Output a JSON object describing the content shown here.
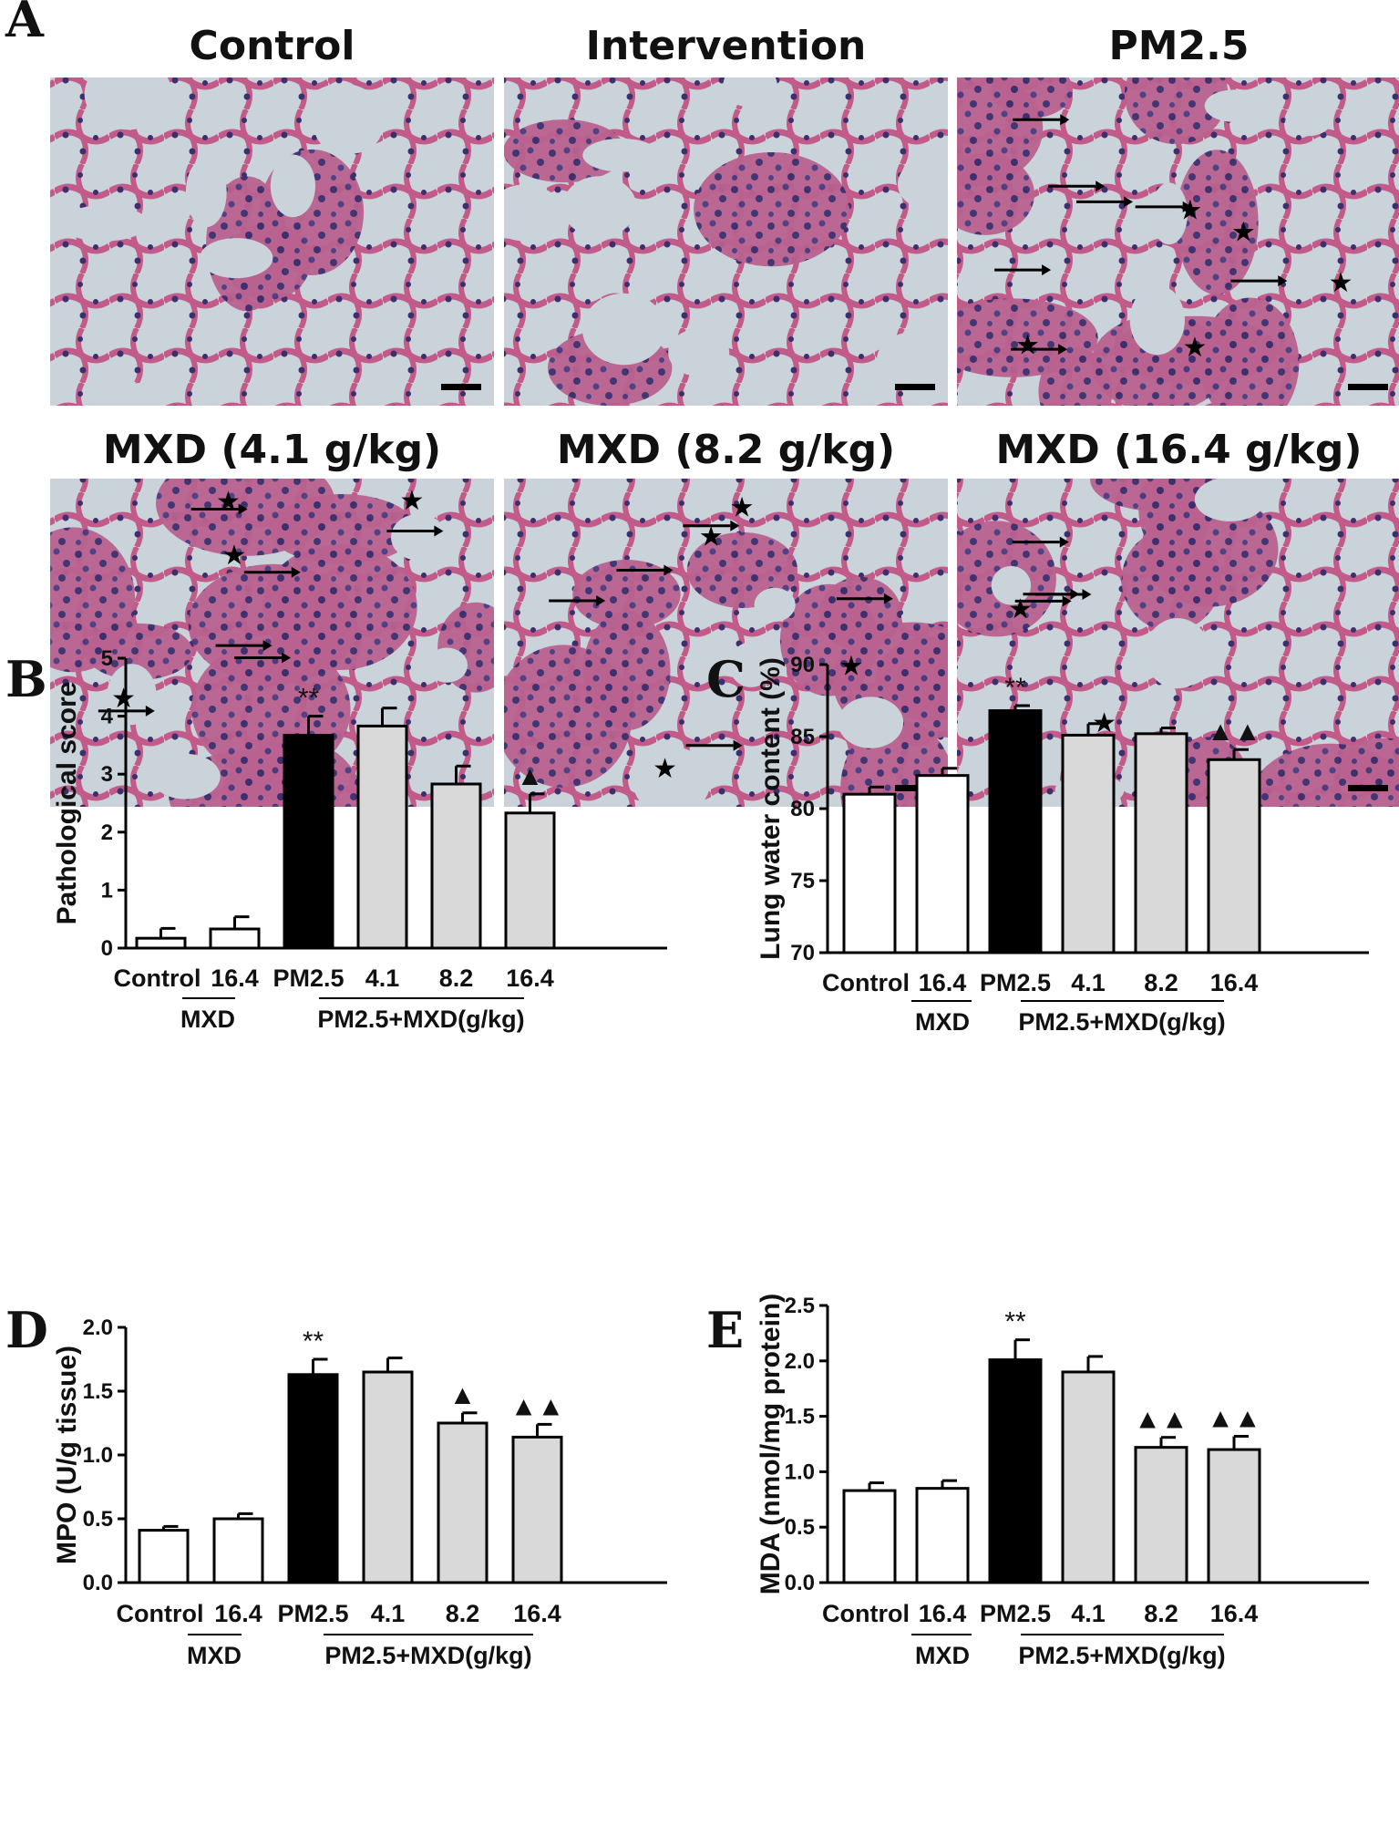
{
  "panels": {
    "a_label": "A",
    "images": [
      {
        "title": "Control",
        "arrows": 0,
        "stars": 0,
        "density": 0.2
      },
      {
        "title": "Intervention",
        "arrows": 0,
        "stars": 0,
        "density": 0.18
      },
      {
        "title": "PM2.5",
        "arrows": 7,
        "stars": 5,
        "density": 0.62
      },
      {
        "title": "MXD (4.1 g/kg)",
        "arrows": 6,
        "stars": 4,
        "density": 0.6
      },
      {
        "title": "MXD (8.2 g/kg)",
        "arrows": 5,
        "stars": 4,
        "density": 0.56
      },
      {
        "title": "MXD (16.4 g/kg)",
        "arrows": 4,
        "stars": 2,
        "density": 0.48
      }
    ]
  },
  "colors": {
    "tissue_bg": "#c9d3d9",
    "tissue_pink": "#c25a8a",
    "tissue_nuclei": "#3b2f6e",
    "bar_white": "#ffffff",
    "bar_black": "#000000",
    "bar_gray": "#d9d9d9"
  },
  "group_labels": {
    "mxd": "MXD",
    "pm_mxd": "PM2.5+MXD(g/kg)"
  },
  "chart_data": [
    {
      "panel": "B",
      "type": "bar",
      "ylabel": "Pathological score",
      "categories": [
        "Control",
        "16.4",
        "PM2.5",
        "4.1",
        "8.2",
        "16.4"
      ],
      "values": [
        0.17,
        0.33,
        3.67,
        3.83,
        2.83,
        2.33
      ],
      "errors": [
        0.17,
        0.21,
        0.33,
        0.31,
        0.31,
        0.33
      ],
      "bar_colors": [
        "white",
        "white",
        "black",
        "gray",
        "gray",
        "gray"
      ],
      "annotations": [
        "",
        "",
        "**",
        "",
        "",
        "▲"
      ],
      "ylim": [
        0,
        5
      ],
      "yticks": [
        "0",
        "1",
        "2",
        "3",
        "4",
        "5"
      ]
    },
    {
      "panel": "C",
      "type": "bar",
      "ylabel": "Lung water content (%)",
      "categories": [
        "Control",
        "16.4",
        "PM2.5",
        "4.1",
        "8.2",
        "16.4"
      ],
      "values": [
        81.0,
        82.3,
        86.8,
        85.1,
        85.2,
        83.4
      ],
      "errors": [
        0.5,
        0.5,
        0.35,
        0.8,
        0.4,
        0.7
      ],
      "bar_colors": [
        "white",
        "white",
        "black",
        "gray",
        "gray",
        "gray"
      ],
      "annotations": [
        "",
        "",
        "**",
        "",
        "",
        "▲▲"
      ],
      "ylim": [
        70,
        90
      ],
      "yticks": [
        "70",
        "75",
        "80",
        "85",
        "90"
      ]
    },
    {
      "panel": "D",
      "type": "bar",
      "ylabel": "MPO (U/g tissue)",
      "categories": [
        "Control",
        "16.4",
        "PM2.5",
        "4.1",
        "8.2",
        "16.4"
      ],
      "values": [
        0.41,
        0.5,
        1.63,
        1.65,
        1.25,
        1.14
      ],
      "errors": [
        0.03,
        0.04,
        0.12,
        0.11,
        0.08,
        0.1
      ],
      "bar_colors": [
        "white",
        "white",
        "black",
        "gray",
        "gray",
        "gray"
      ],
      "annotations": [
        "",
        "",
        "**",
        "",
        "▲",
        "▲▲"
      ],
      "ylim": [
        0,
        2
      ],
      "yticks": [
        "0.0",
        "0.5",
        "1.0",
        "1.5",
        "2.0"
      ]
    },
    {
      "panel": "E",
      "type": "bar",
      "ylabel": "MDA (nmol/mg protein)",
      "categories": [
        "Control",
        "16.4",
        "PM2.5",
        "4.1",
        "8.2",
        "16.4"
      ],
      "values": [
        0.83,
        0.85,
        2.01,
        1.9,
        1.22,
        1.2
      ],
      "errors": [
        0.07,
        0.07,
        0.18,
        0.14,
        0.09,
        0.12
      ],
      "bar_colors": [
        "white",
        "white",
        "black",
        "gray",
        "gray",
        "gray"
      ],
      "annotations": [
        "",
        "",
        "**",
        "",
        "▲▲",
        "▲▲"
      ],
      "ylim": [
        0,
        2.5
      ],
      "yticks": [
        "0.0",
        "0.5",
        "1.0",
        "1.5",
        "2.0",
        "2.5"
      ]
    }
  ]
}
